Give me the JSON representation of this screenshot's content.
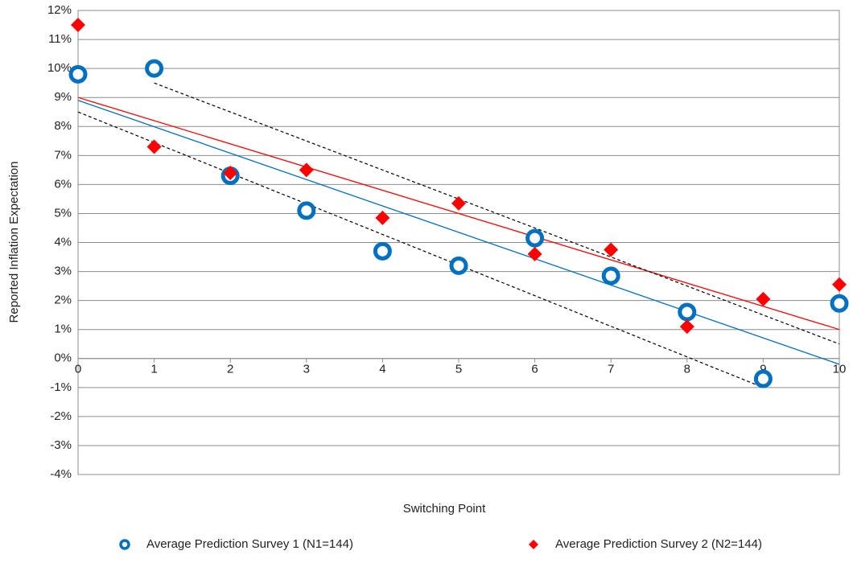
{
  "chart_data": {
    "type": "scatter",
    "y_label": "Reported Inflation Expectation",
    "x_label": "Switching Point",
    "x": [
      0,
      1,
      2,
      3,
      4,
      5,
      6,
      7,
      8,
      9,
      10
    ],
    "xlim": [
      0,
      10
    ],
    "xticks": [
      0,
      1,
      2,
      3,
      4,
      5,
      6,
      7,
      8,
      9,
      10
    ],
    "ylim": [
      -4,
      12
    ],
    "yticks": [
      {
        "value": -4,
        "label": "-4%"
      },
      {
        "value": -3,
        "label": "-3%"
      },
      {
        "value": -2,
        "label": "-2%"
      },
      {
        "value": -1,
        "label": "-1%"
      },
      {
        "value": 0,
        "label": "0%"
      },
      {
        "value": 1,
        "label": "1%"
      },
      {
        "value": 2,
        "label": "2%"
      },
      {
        "value": 3,
        "label": "3%"
      },
      {
        "value": 4,
        "label": "4%"
      },
      {
        "value": 5,
        "label": "5%"
      },
      {
        "value": 6,
        "label": "6%"
      },
      {
        "value": 7,
        "label": "7%"
      },
      {
        "value": 8,
        "label": "8%"
      },
      {
        "value": 9,
        "label": "9%"
      },
      {
        "value": 10,
        "label": "10%"
      },
      {
        "value": 11,
        "label": "11%"
      },
      {
        "value": 12,
        "label": "12%"
      }
    ],
    "grid": true,
    "legend": "bottom",
    "series": [
      {
        "name": "Average Prediction Survey 1 (N1=144)",
        "color": "#0070c0",
        "marker": "circle",
        "values": [
          9.8,
          10.0,
          6.3,
          5.1,
          3.7,
          3.2,
          4.15,
          2.85,
          1.6,
          -0.7,
          1.9
        ]
      },
      {
        "name": "Average Prediction Survey 2 (N2=144)",
        "color": "#ff0000",
        "marker": "diamond",
        "values": [
          11.5,
          7.3,
          6.4,
          6.5,
          4.85,
          5.35,
          3.6,
          3.75,
          1.1,
          2.05,
          2.55
        ]
      }
    ],
    "trendlines": [
      {
        "color": "#0070c0",
        "dashed": false,
        "x": [
          0,
          10
        ],
        "values": [
          8.9,
          -0.2
        ]
      },
      {
        "color": "#ff0000",
        "dashed": false,
        "x": [
          0,
          10
        ],
        "values": [
          9.0,
          1.0
        ]
      },
      {
        "color": "#000000",
        "dashed": true,
        "x": [
          1,
          10
        ],
        "values": [
          9.5,
          0.5
        ]
      },
      {
        "color": "#000000",
        "dashed": true,
        "x": [
          0,
          9
        ],
        "values": [
          8.5,
          -1.0
        ]
      }
    ]
  }
}
